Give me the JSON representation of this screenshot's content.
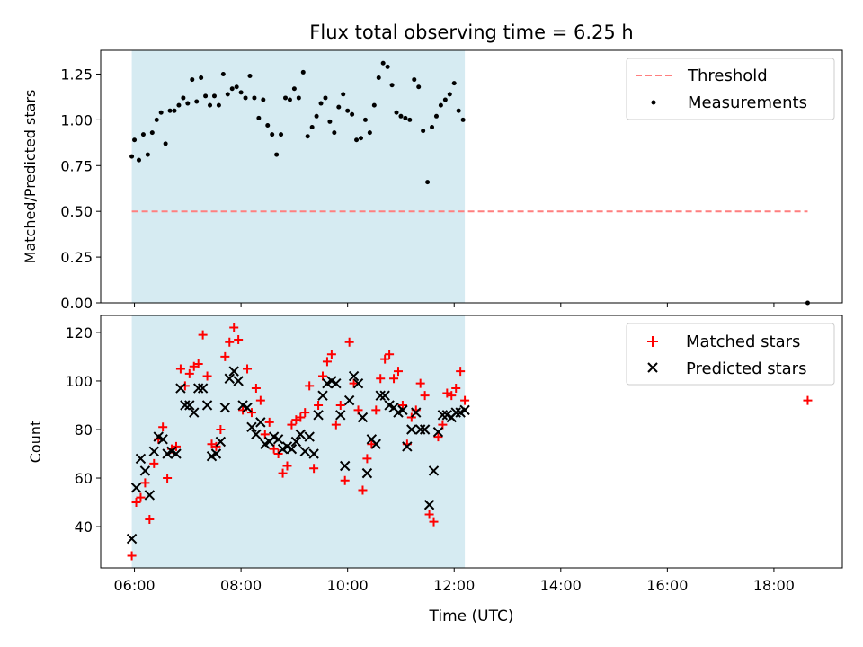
{
  "chart_data": [
    {
      "type": "scatter",
      "title": "Flux total observing time = 6.25 h",
      "xlabel": "",
      "ylabel": "Matched/Predicted stars",
      "xlim": [
        "05:22",
        "19:17"
      ],
      "ylim": [
        0,
        1.38
      ],
      "yticks": [
        "0.00",
        "0.25",
        "0.50",
        "0.75",
        "1.00",
        "1.25"
      ],
      "xticks": [
        "06:00",
        "08:00",
        "10:00",
        "12:00",
        "14:00",
        "16:00",
        "18:00"
      ],
      "shaded_interval": [
        "05:57",
        "12:12"
      ],
      "threshold": {
        "name": "Threshold",
        "value": 0.5,
        "x": [
          "05:57",
          "18:38"
        ],
        "color": "#ff7f7f"
      },
      "legend_position": "top-right",
      "series": [
        {
          "name": "Measurements",
          "color": "#000000",
          "x": [
            "05:57",
            "06:00",
            "06:05",
            "06:10",
            "06:15",
            "06:20",
            "06:25",
            "06:30",
            "06:35",
            "06:40",
            "06:45",
            "06:50",
            "06:55",
            "07:00",
            "07:05",
            "07:10",
            "07:15",
            "07:20",
            "07:25",
            "07:30",
            "07:35",
            "07:40",
            "07:45",
            "07:50",
            "07:55",
            "08:00",
            "08:05",
            "08:10",
            "08:15",
            "08:20",
            "08:25",
            "08:30",
            "08:35",
            "08:40",
            "08:45",
            "08:50",
            "08:55",
            "09:00",
            "09:05",
            "09:10",
            "09:15",
            "09:20",
            "09:25",
            "09:30",
            "09:35",
            "09:40",
            "09:45",
            "09:50",
            "09:55",
            "10:00",
            "10:05",
            "10:10",
            "10:15",
            "10:20",
            "10:25",
            "10:30",
            "10:35",
            "10:40",
            "10:45",
            "10:50",
            "10:55",
            "11:00",
            "11:05",
            "11:10",
            "11:15",
            "11:20",
            "11:25",
            "11:30",
            "11:35",
            "11:40",
            "11:45",
            "11:50",
            "11:55",
            "12:00",
            "12:05",
            "12:10",
            "18:38"
          ],
          "values": [
            0.8,
            0.89,
            0.78,
            0.92,
            0.81,
            0.93,
            1.0,
            1.04,
            0.87,
            1.05,
            1.05,
            1.08,
            1.12,
            1.09,
            1.22,
            1.1,
            1.23,
            1.13,
            1.08,
            1.13,
            1.08,
            1.25,
            1.14,
            1.17,
            1.18,
            1.15,
            1.12,
            1.24,
            1.12,
            1.01,
            1.11,
            0.97,
            0.92,
            0.81,
            0.92,
            1.12,
            1.11,
            1.17,
            1.12,
            1.26,
            0.91,
            0.96,
            1.02,
            1.09,
            1.12,
            0.99,
            0.93,
            1.07,
            1.14,
            1.05,
            1.03,
            0.89,
            0.9,
            1.0,
            0.93,
            1.08,
            1.23,
            1.31,
            1.29,
            1.19,
            1.04,
            1.02,
            1.01,
            1.0,
            1.22,
            1.18,
            0.94,
            0.66,
            0.96,
            1.02,
            1.08,
            1.11,
            1.14,
            1.2,
            1.05,
            1.0,
            0.0
          ]
        }
      ]
    },
    {
      "type": "scatter",
      "title": "",
      "xlabel": "Time (UTC)",
      "ylabel": "Count",
      "xlim": [
        "05:22",
        "19:17"
      ],
      "ylim": [
        23,
        127
      ],
      "yticks": [
        "40",
        "60",
        "80",
        "100",
        "120"
      ],
      "xticks": [
        "06:00",
        "08:00",
        "10:00",
        "12:00",
        "14:00",
        "16:00",
        "18:00"
      ],
      "shaded_interval": [
        "05:57",
        "12:12"
      ],
      "legend_position": "top-right",
      "series": [
        {
          "name": "Matched stars",
          "marker": "+",
          "color": "#ff0000",
          "x": [
            "05:57",
            "06:02",
            "06:07",
            "06:12",
            "06:17",
            "06:22",
            "06:27",
            "06:32",
            "06:37",
            "06:42",
            "06:47",
            "06:52",
            "06:57",
            "07:02",
            "07:07",
            "07:12",
            "07:17",
            "07:22",
            "07:27",
            "07:32",
            "07:37",
            "07:42",
            "07:47",
            "07:52",
            "07:57",
            "08:02",
            "08:07",
            "08:12",
            "08:17",
            "08:22",
            "08:27",
            "08:32",
            "08:37",
            "08:42",
            "08:47",
            "08:52",
            "08:57",
            "09:02",
            "09:07",
            "09:12",
            "09:17",
            "09:22",
            "09:27",
            "09:32",
            "09:37",
            "09:42",
            "09:47",
            "09:52",
            "09:57",
            "10:02",
            "10:07",
            "10:12",
            "10:17",
            "10:22",
            "10:27",
            "10:32",
            "10:37",
            "10:42",
            "10:47",
            "10:52",
            "10:57",
            "11:02",
            "11:07",
            "11:12",
            "11:17",
            "11:22",
            "11:27",
            "11:32",
            "11:37",
            "11:42",
            "11:47",
            "11:52",
            "11:57",
            "12:02",
            "12:07",
            "12:12",
            "18:38"
          ],
          "values": [
            28,
            50,
            52,
            58,
            43,
            66,
            76,
            81,
            60,
            72,
            73,
            105,
            98,
            103,
            106,
            107,
            119,
            102,
            74,
            73,
            80,
            110,
            116,
            122,
            117,
            88,
            105,
            87,
            97,
            92,
            78,
            83,
            72,
            70,
            62,
            65,
            82,
            84,
            85,
            87,
            98,
            64,
            90,
            102,
            108,
            111,
            82,
            90,
            59,
            116,
            99,
            88,
            55,
            68,
            74,
            88,
            101,
            109,
            111,
            101,
            104,
            90,
            74,
            85,
            88,
            99,
            94,
            45,
            42,
            77,
            82,
            95,
            94,
            97,
            104,
            92,
            92
          ]
        },
        {
          "name": "Predicted stars",
          "marker": "x",
          "color": "#000000",
          "x": [
            "05:57",
            "06:02",
            "06:07",
            "06:12",
            "06:17",
            "06:22",
            "06:27",
            "06:32",
            "06:37",
            "06:42",
            "06:47",
            "06:52",
            "06:57",
            "07:02",
            "07:07",
            "07:12",
            "07:17",
            "07:22",
            "07:27",
            "07:32",
            "07:37",
            "07:42",
            "07:47",
            "07:52",
            "07:57",
            "08:02",
            "08:07",
            "08:12",
            "08:17",
            "08:22",
            "08:27",
            "08:32",
            "08:37",
            "08:42",
            "08:47",
            "08:52",
            "08:57",
            "09:02",
            "09:07",
            "09:12",
            "09:17",
            "09:22",
            "09:27",
            "09:32",
            "09:37",
            "09:42",
            "09:47",
            "09:52",
            "09:57",
            "10:02",
            "10:07",
            "10:12",
            "10:17",
            "10:22",
            "10:27",
            "10:32",
            "10:37",
            "10:42",
            "10:47",
            "10:52",
            "10:57",
            "11:02",
            "11:07",
            "11:12",
            "11:17",
            "11:22",
            "11:27",
            "11:32",
            "11:37",
            "11:42",
            "11:47",
            "11:52",
            "11:57",
            "12:02",
            "12:07",
            "12:12"
          ],
          "values": [
            35,
            56,
            68,
            63,
            53,
            71,
            77,
            76,
            70,
            71,
            70,
            97,
            90,
            90,
            87,
            97,
            97,
            90,
            69,
            70,
            75,
            89,
            101,
            104,
            100,
            90,
            89,
            81,
            78,
            83,
            74,
            75,
            77,
            76,
            72,
            73,
            72,
            75,
            78,
            71,
            77,
            70,
            86,
            94,
            99,
            100,
            99,
            86,
            65,
            92,
            102,
            99,
            85,
            62,
            76,
            74,
            94,
            94,
            90,
            89,
            87,
            88,
            73,
            80,
            87,
            80,
            80,
            49,
            63,
            79,
            86,
            86,
            85,
            87,
            87,
            88
          ]
        }
      ]
    }
  ]
}
